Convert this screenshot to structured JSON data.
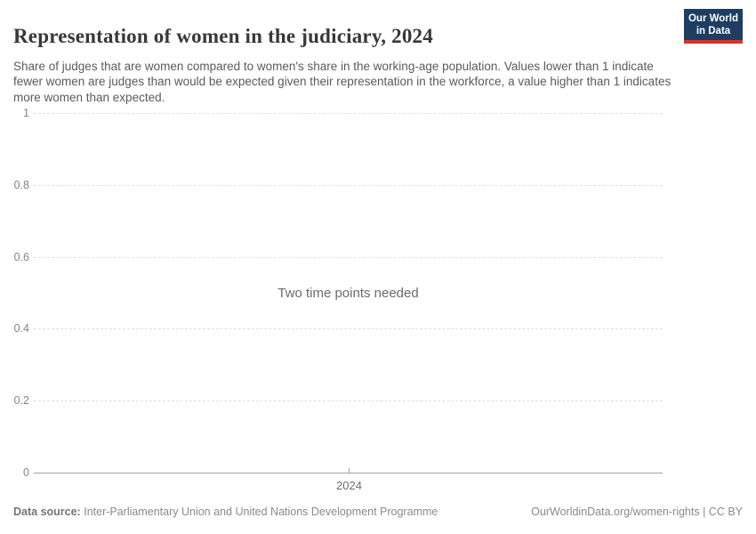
{
  "header": {
    "title": "Representation of women in the judiciary, 2024",
    "subtitle": "Share of judges that are women compared to women's share in the working-age population. Values lower than 1 indicate fewer women are judges than would be expected given their representation in the workforce, a value higher than 1 indicates more women than expected.",
    "logo": {
      "line1": "Our World",
      "line2": "in Data"
    }
  },
  "chart_data": {
    "type": "line",
    "title": "Representation of women in the judiciary, 2024",
    "series": [],
    "x": [],
    "message": "Two time points needed",
    "xticks": [
      "2024"
    ],
    "yticks": [
      "0",
      "0.2",
      "0.4",
      "0.6",
      "0.8",
      "1"
    ],
    "ylim": [
      0,
      1
    ],
    "xlabel": "",
    "ylabel": "",
    "grid": "horizontal-dashed",
    "legend": "none"
  },
  "footer": {
    "datasource_label": "Data source:",
    "datasource_text": "Inter-Parliamentary Union and United Nations Development Programme",
    "credit": "OurWorldinData.org/women-rights | CC BY"
  },
  "colors": {
    "brand_navy": "#1d3d63",
    "brand_red": "#d4362b",
    "title_text": "#383838",
    "subtitle_text": "#5a5a5a",
    "tick_text": "#858585",
    "gridline": "#e0e0e0",
    "axis_line": "#a3a3a3",
    "message_text": "#6b6b6b",
    "background": "#ffffff"
  }
}
